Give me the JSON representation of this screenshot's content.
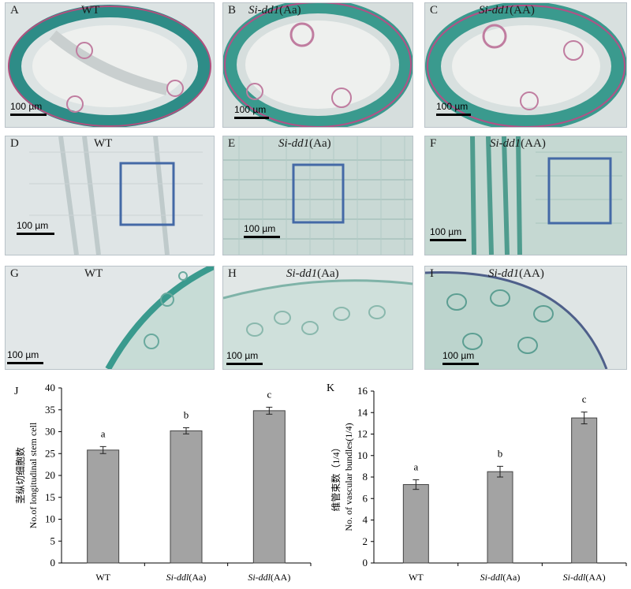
{
  "panels": [
    {
      "letter": "A",
      "genotype_plain": "WT",
      "genotype_italic": "",
      "genotype_suffix": "",
      "scale": "100 µm",
      "bg": "#dbe3e3"
    },
    {
      "letter": "B",
      "genotype_plain": "",
      "genotype_italic": "Si-dd1",
      "genotype_suffix": "(Aa)",
      "scale": "100 µm",
      "bg": "#d6dedd"
    },
    {
      "letter": "C",
      "genotype_plain": "",
      "genotype_italic": "Si-dd1",
      "genotype_suffix": "(AA)",
      "scale": "100 µm",
      "bg": "#d8e0df"
    },
    {
      "letter": "D",
      "genotype_plain": "WT",
      "genotype_italic": "",
      "genotype_suffix": "",
      "scale": "100 µm",
      "bg": "#dfe5e6"
    },
    {
      "letter": "E",
      "genotype_plain": "",
      "genotype_italic": "Si-dd1",
      "genotype_suffix": "(Aa)",
      "scale": "100 µm",
      "bg": "#c9d9d5"
    },
    {
      "letter": "F",
      "genotype_plain": "",
      "genotype_italic": "Si-dd1",
      "genotype_suffix": "(AA)",
      "scale": "100 µm",
      "bg": "#c5d8d2"
    },
    {
      "letter": "G",
      "genotype_plain": "WT",
      "genotype_italic": "",
      "genotype_suffix": "",
      "scale": "100 µm",
      "bg": "#e2e7e8"
    },
    {
      "letter": "H",
      "genotype_plain": "",
      "genotype_italic": "Si-dd1",
      "genotype_suffix": "(Aa)",
      "scale": "100 µm",
      "bg": "#e1e7e6"
    },
    {
      "letter": "I",
      "genotype_plain": "",
      "genotype_italic": "Si-dd1",
      "genotype_suffix": "(AA)",
      "scale": "100 µm",
      "bg": "#dfe5e5"
    }
  ],
  "chart_data": [
    {
      "type": "bar",
      "panel": "J",
      "categories": [
        "WT",
        "Si-ddl(Aa)",
        "Si-ddl(AA)"
      ],
      "category_parts": [
        [
          "WT",
          ""
        ],
        [
          "Si-ddl",
          "(Aa)"
        ],
        [
          "Si-ddl",
          "(AA)"
        ]
      ],
      "values": [
        25.8,
        30.2,
        34.8
      ],
      "errors": [
        0.8,
        0.7,
        0.8
      ],
      "letters": [
        "a",
        "b",
        "c"
      ],
      "ylabel_cn": "茎纵切细胞数",
      "ylabel_en": "No.of longitudinal stem cell",
      "ylim": [
        0,
        40
      ],
      "yticks": [
        0,
        5,
        10,
        15,
        20,
        25,
        30,
        35,
        40
      ],
      "grid": false,
      "bar_color": "#a3a3a3"
    },
    {
      "type": "bar",
      "panel": "K",
      "categories": [
        "WT",
        "Si-ddl(Aa)",
        "Si-ddl(AA)"
      ],
      "category_parts": [
        [
          "WT",
          ""
        ],
        [
          "Si-ddl",
          "(Aa)"
        ],
        [
          "Si-ddl",
          "(AA)"
        ]
      ],
      "values": [
        7.3,
        8.5,
        13.5
      ],
      "errors": [
        0.45,
        0.5,
        0.55
      ],
      "letters": [
        "a",
        "b",
        "c"
      ],
      "ylabel_cn": "维管束数（1/4）",
      "ylabel_en": "No. of vascular bundles(1/4)",
      "ylim": [
        0,
        16
      ],
      "yticks": [
        0,
        2,
        4,
        6,
        8,
        10,
        12,
        14,
        16
      ],
      "grid": false,
      "bar_color": "#a3a3a3"
    }
  ]
}
